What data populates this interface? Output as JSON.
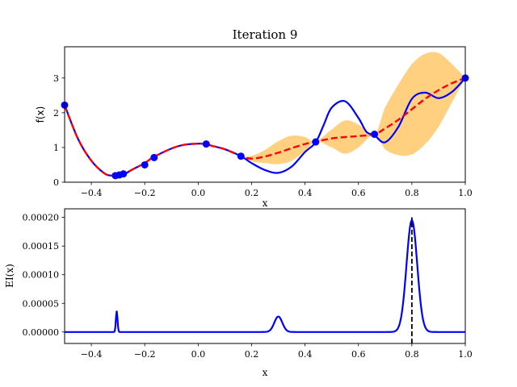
{
  "chart_data": [
    {
      "type": "line",
      "title": "Iteration 9",
      "xlabel": "x",
      "ylabel": "f(x)",
      "xlim": [
        -0.5,
        1.0
      ],
      "ylim": [
        0,
        3.9
      ],
      "xticks": [
        "−0.4",
        "−0.2",
        "0.0",
        "0.2",
        "0.4",
        "0.6",
        "0.8",
        "1.0"
      ],
      "xtick_values": [
        -0.4,
        -0.2,
        0.0,
        0.2,
        0.4,
        0.6,
        0.8,
        1.0
      ],
      "yticks": [
        "0",
        "1",
        "2",
        "3"
      ],
      "ytick_values": [
        0,
        1,
        2,
        3
      ],
      "colors": {
        "true_function": "#0000ff",
        "mean": "#ff0000",
        "confidence": "#ffd080",
        "observations": "#0000ff"
      },
      "series": [
        {
          "style": "solid",
          "x": [
            -0.5,
            -0.45,
            -0.4,
            -0.35,
            -0.32,
            -0.3,
            -0.27,
            -0.25,
            -0.2,
            -0.17,
            -0.1,
            -0.05,
            0.0,
            0.03,
            0.05,
            0.1,
            0.16,
            0.2,
            0.25,
            0.3,
            0.35,
            0.4,
            0.44,
            0.47,
            0.5,
            0.55,
            0.6,
            0.63,
            0.66,
            0.7,
            0.75,
            0.8,
            0.85,
            0.9,
            0.95,
            1.0
          ],
          "y": [
            2.22,
            1.25,
            0.62,
            0.25,
            0.19,
            0.2,
            0.26,
            0.35,
            0.55,
            0.71,
            0.97,
            1.08,
            1.11,
            1.1,
            1.05,
            0.95,
            0.75,
            0.55,
            0.35,
            0.27,
            0.45,
            0.87,
            1.15,
            1.65,
            2.15,
            2.33,
            1.85,
            1.45,
            1.35,
            1.15,
            1.6,
            2.4,
            2.58,
            2.42,
            2.6,
            3.0
          ]
        },
        {
          "style": "dashed",
          "x": [
            -0.5,
            -0.45,
            -0.4,
            -0.35,
            -0.32,
            -0.3,
            -0.27,
            -0.25,
            -0.2,
            -0.17,
            -0.1,
            -0.05,
            0.0,
            0.03,
            0.05,
            0.1,
            0.16,
            0.2,
            0.25,
            0.3,
            0.35,
            0.4,
            0.44,
            0.5,
            0.55,
            0.6,
            0.66,
            0.7,
            0.75,
            0.8,
            0.85,
            0.9,
            0.95,
            1.0
          ],
          "y": [
            2.22,
            1.25,
            0.62,
            0.25,
            0.19,
            0.2,
            0.26,
            0.35,
            0.55,
            0.71,
            0.97,
            1.08,
            1.11,
            1.1,
            1.05,
            0.95,
            0.75,
            0.68,
            0.74,
            0.85,
            0.98,
            1.1,
            1.17,
            1.26,
            1.3,
            1.33,
            1.38,
            1.55,
            1.8,
            2.1,
            2.4,
            2.65,
            2.85,
            3.0
          ]
        }
      ],
      "confidence_band": {
        "x": [
          -0.5,
          -0.4,
          -0.3,
          -0.2,
          -0.1,
          0.0,
          0.1,
          0.16,
          0.2,
          0.25,
          0.3,
          0.35,
          0.4,
          0.44,
          0.5,
          0.55,
          0.6,
          0.66,
          0.7,
          0.75,
          0.8,
          0.85,
          0.9,
          0.95,
          1.0
        ],
        "lower": [
          2.22,
          0.62,
          0.2,
          0.55,
          0.97,
          1.11,
          0.95,
          0.75,
          0.6,
          0.55,
          0.52,
          0.62,
          0.9,
          1.17,
          1.0,
          0.82,
          1.0,
          1.38,
          0.95,
          0.78,
          0.8,
          1.1,
          1.6,
          2.3,
          3.0
        ],
        "upper": [
          2.22,
          0.62,
          0.2,
          0.55,
          0.97,
          1.11,
          0.95,
          0.75,
          0.76,
          0.93,
          1.18,
          1.34,
          1.3,
          1.17,
          1.52,
          1.78,
          1.66,
          1.38,
          2.15,
          2.82,
          3.4,
          3.7,
          3.72,
          3.4,
          3.0
        ]
      },
      "observations": {
        "x": [
          -0.5,
          -0.31,
          -0.295,
          -0.28,
          -0.2,
          -0.165,
          0.03,
          0.16,
          0.44,
          0.66,
          1.0
        ],
        "y": [
          2.22,
          0.19,
          0.21,
          0.24,
          0.5,
          0.71,
          1.1,
          0.75,
          1.16,
          1.38,
          3.0
        ]
      }
    },
    {
      "type": "line",
      "title": "",
      "xlabel": "x",
      "ylabel": "EI(x)",
      "xlim": [
        -0.5,
        1.0
      ],
      "ylim": [
        -2e-05,
        0.000215
      ],
      "xticks": [
        "−0.4",
        "−0.2",
        "0.0",
        "0.2",
        "0.4",
        "0.6",
        "0.8",
        "1.0"
      ],
      "xtick_values": [
        -0.4,
        -0.2,
        0.0,
        0.2,
        0.4,
        0.6,
        0.8,
        1.0
      ],
      "yticks": [
        "0.00000",
        "0.00005",
        "0.00010",
        "0.00015",
        "0.00020"
      ],
      "ytick_values": [
        0,
        5e-05,
        0.0001,
        0.00015,
        0.0002
      ],
      "colors": {
        "ei": "#0000ff",
        "next_point": "#000000"
      },
      "peaks": [
        {
          "center": -0.305,
          "height": 3.7e-05,
          "width": 0.003
        },
        {
          "center": 0.3,
          "height": 2.7e-05,
          "width": 0.015
        },
        {
          "center": 0.8,
          "height": 0.000195,
          "width": 0.02
        }
      ],
      "next_point_x": 0.8
    }
  ]
}
